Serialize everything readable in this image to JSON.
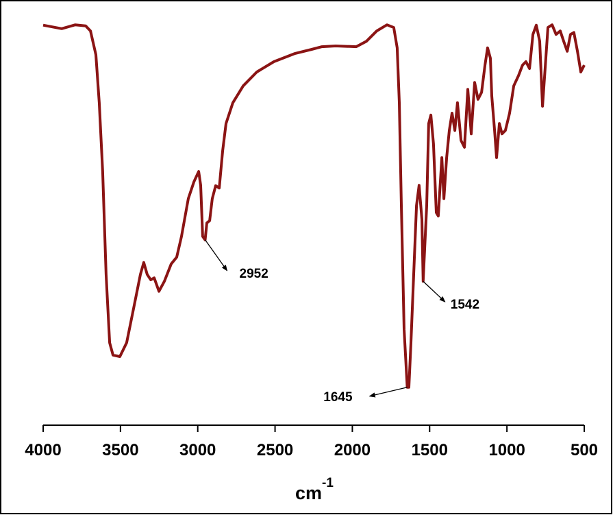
{
  "chart_data": {
    "type": "line",
    "xlabel": "cm",
    "xlabel_superscript": "-1",
    "color": "#8b1414",
    "xlim": [
      4000,
      500
    ],
    "ylim": [
      0,
      100
    ],
    "xticks": [
      4000,
      3500,
      3000,
      2500,
      2000,
      1500,
      1000,
      500
    ],
    "x": [
      4000,
      3880,
      3792,
      3725,
      3694,
      3659,
      3637,
      3615,
      3593,
      3570,
      3548,
      3504,
      3460,
      3415,
      3371,
      3349,
      3327,
      3304,
      3282,
      3251,
      3216,
      3172,
      3136,
      3105,
      3061,
      3025,
      2994,
      2981,
      2968,
      2952,
      2941,
      2923,
      2906,
      2884,
      2861,
      2839,
      2817,
      2773,
      2706,
      2618,
      2507,
      2374,
      2263,
      2197,
      2108,
      1975,
      1909,
      1842,
      1776,
      1732,
      1710,
      1696,
      1683,
      1665,
      1645,
      1634,
      1621,
      1603,
      1585,
      1568,
      1550,
      1542,
      1519,
      1506,
      1492,
      1475,
      1457,
      1444,
      1421,
      1408,
      1390,
      1373,
      1355,
      1337,
      1320,
      1297,
      1275,
      1253,
      1231,
      1209,
      1187,
      1164,
      1142,
      1125,
      1107,
      1098,
      1080,
      1067,
      1049,
      1032,
      1010,
      983,
      956,
      925,
      899,
      877,
      854,
      832,
      810,
      788,
      770,
      753,
      735,
      708,
      682,
      655,
      633,
      610,
      589,
      567,
      544,
      522,
      500
    ],
    "values": [
      98.8,
      97.9,
      98.9,
      98.6,
      97.3,
      91.1,
      78.6,
      60.7,
      33.9,
      16.1,
      12.9,
      12.5,
      16.1,
      25.0,
      33.9,
      37.0,
      33.9,
      32.5,
      33.0,
      29.5,
      32.1,
      36.6,
      38.4,
      43.8,
      53.6,
      58.0,
      60.7,
      57.1,
      43.8,
      42.9,
      47.3,
      47.9,
      53.6,
      57.0,
      56.4,
      66.1,
      73.2,
      78.6,
      83.0,
      86.6,
      89.3,
      91.4,
      92.5,
      93.2,
      93.4,
      93.2,
      94.6,
      97.3,
      98.9,
      98.2,
      92.9,
      78.6,
      51.8,
      19.6,
      4.5,
      4.5,
      16.1,
      33.9,
      51.8,
      57.1,
      48.2,
      32.1,
      51.8,
      73.2,
      75.4,
      67.9,
      50.0,
      49.1,
      64.3,
      53.6,
      64.3,
      71.4,
      75.9,
      71.4,
      78.6,
      68.8,
      67.0,
      82.1,
      70.5,
      83.9,
      79.5,
      81.3,
      88.4,
      92.9,
      90.2,
      80.4,
      71.4,
      64.3,
      73.2,
      70.5,
      71.4,
      75.9,
      83.0,
      85.7,
      88.4,
      89.3,
      87.5,
      96.4,
      98.8,
      94.6,
      77.7,
      87.5,
      98.2,
      98.9,
      96.4,
      97.3,
      94.6,
      92.0,
      96.4,
      96.9,
      92.0,
      86.6,
      88.4
    ],
    "annotations": [
      {
        "text": "2952",
        "x": 2952
      },
      {
        "text": "1542",
        "x": 1542
      },
      {
        "text": "1645",
        "x": 1645
      }
    ]
  }
}
